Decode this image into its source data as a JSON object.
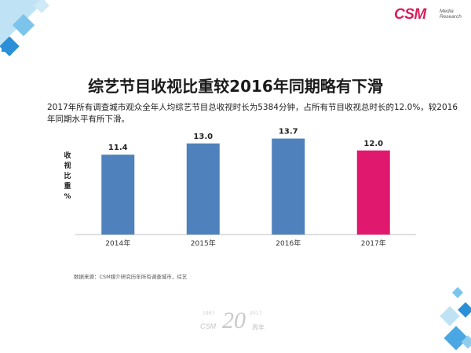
{
  "brand": {
    "logo_text": "CSM",
    "logo_sub_line1": "Media",
    "logo_sub_line2": "Research",
    "accent_color": "#d81f5e"
  },
  "title": "综艺节目收视比重较2016年同期略有下滑",
  "subtitle": "2017年所有调查城市观众全年人均综艺节目总收视时长为5384分钟，占所有节目收视总时长的12.0%，较2016年同期水平有所下滑。",
  "yaxis_label_chars": [
    "收",
    "视",
    "比",
    "重",
    "%"
  ],
  "chart_data": {
    "type": "bar",
    "title": "",
    "xlabel": "",
    "ylabel": "收视比重%",
    "categories": [
      "2014年",
      "2015年",
      "2016年",
      "2017年"
    ],
    "values": [
      11.4,
      13.0,
      13.7,
      12.0
    ],
    "value_labels": [
      "11.4",
      "13.0",
      "13.7",
      "12.0"
    ],
    "colors": [
      "#4f81bd",
      "#4f81bd",
      "#4f81bd",
      "#e0196e"
    ],
    "ylim": [
      0,
      15
    ],
    "grid": false
  },
  "source": "数据来源：CSM媒介研究历年所有调查城市，综艺",
  "anniversary": {
    "number": "20",
    "left_text": "CSM",
    "right_text": "周年",
    "year_start": "1997",
    "year_end": "2017"
  }
}
